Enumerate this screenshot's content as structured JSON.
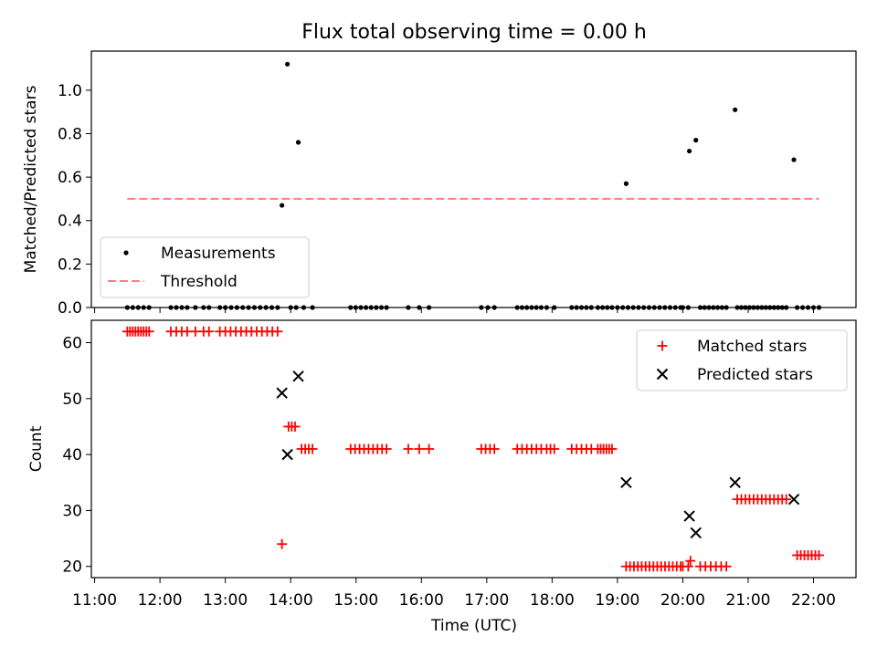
{
  "chart_data": {
    "title": "Flux total observing time = 0.00 h",
    "xlabel": "Time (UTC)",
    "x_tick_labels": [
      "11:00",
      "12:00",
      "13:00",
      "14:00",
      "15:00",
      "16:00",
      "17:00",
      "18:00",
      "19:00",
      "20:00",
      "21:00",
      "22:00"
    ],
    "x_range_hours": [
      10.95,
      22.65
    ],
    "panels": [
      {
        "type": "scatter",
        "ylabel": "Matched/Predicted stars",
        "ylim": [
          0,
          1.18
        ],
        "yticks": [
          0.0,
          0.2,
          0.4,
          0.6,
          0.8,
          1.0
        ],
        "ytick_labels": [
          "0.0",
          "0.2",
          "0.4",
          "0.6",
          "0.8",
          "1.0"
        ],
        "legend_position": "lower-left",
        "series": [
          {
            "name": "Measurements",
            "marker": "dot",
            "color": "#000000",
            "points": [
              [
                "13:52",
                0.47
              ],
              [
                "13:57",
                1.12
              ],
              [
                "14:07",
                0.76
              ],
              [
                "19:08",
                0.57
              ],
              [
                "20:06",
                0.72
              ],
              [
                "20:12",
                0.77
              ],
              [
                "20:48",
                0.91
              ],
              [
                "21:42",
                0.68
              ]
            ],
            "zero_runs": [
              [
                "11:30",
                "11:50",
                5
              ],
              [
                "12:10",
                "12:20",
                3
              ],
              [
                "12:25",
                "12:40",
                3
              ],
              [
                "12:45",
                "12:55",
                2
              ],
              [
                "13:00",
                "13:48",
                10
              ],
              [
                "14:00",
                "14:05",
                2
              ],
              [
                "14:12",
                "14:20",
                2
              ],
              [
                "14:55",
                "15:28",
                8
              ],
              [
                "15:48",
                "15:58",
                2
              ],
              [
                "16:07",
                "16:07",
                1
              ],
              [
                "16:55",
                "17:07",
                3
              ],
              [
                "17:28",
                "17:50",
                6
              ],
              [
                "17:55",
                "18:02",
                2
              ],
              [
                "18:18",
                "18:36",
                5
              ],
              [
                "18:42",
                "18:55",
                4
              ],
              [
                "19:00",
                "19:58",
                13
              ],
              [
                "20:00",
                "20:05",
                2
              ],
              [
                "20:16",
                "20:40",
                7
              ],
              [
                "20:50",
                "21:35",
                13
              ],
              [
                "21:45",
                "22:05",
                5
              ]
            ]
          },
          {
            "name": "Threshold",
            "type": "line",
            "style": "dashed",
            "color": "#ff7f7f",
            "y": 0.5,
            "x": [
              "11:30",
              "22:05"
            ]
          }
        ]
      },
      {
        "type": "scatter",
        "ylabel": "Count",
        "ylim": [
          18,
          64
        ],
        "yticks": [
          20,
          30,
          40,
          50,
          60
        ],
        "ytick_labels": [
          "20",
          "30",
          "40",
          "50",
          "60"
        ],
        "legend_position": "upper-right",
        "series": [
          {
            "name": "Matched stars",
            "marker": "plus",
            "color": "#ff0000",
            "runs": [
              [
                "11:30",
                "11:50",
                62,
                9
              ],
              [
                "12:10",
                "12:20",
                62,
                3
              ],
              [
                "12:25",
                "12:40",
                62,
                3
              ],
              [
                "12:45",
                "12:55",
                62,
                2
              ],
              [
                "13:00",
                "13:48",
                62,
                11
              ],
              [
                "13:58",
                "14:04",
                45,
                3
              ],
              [
                "14:10",
                "14:20",
                41,
                4
              ],
              [
                "14:55",
                "15:28",
                41,
                9
              ],
              [
                "15:48",
                "15:58",
                41,
                2
              ],
              [
                "16:07",
                "16:07",
                41,
                1
              ],
              [
                "16:55",
                "17:07",
                41,
                4
              ],
              [
                "17:28",
                "17:50",
                41,
                6
              ],
              [
                "17:55",
                "18:02",
                41,
                3
              ],
              [
                "18:18",
                "18:36",
                41,
                5
              ],
              [
                "18:42",
                "18:55",
                41,
                6
              ],
              [
                "19:08",
                "19:58",
                20,
                15
              ],
              [
                "20:00",
                "20:05",
                20,
                2
              ],
              [
                "20:16",
                "20:40",
                20,
                6
              ],
              [
                "20:50",
                "21:35",
                32,
                13
              ],
              [
                "21:45",
                "22:05",
                22,
                7
              ]
            ],
            "points": [
              [
                "13:52",
                24
              ],
              [
                "20:07",
                21
              ]
            ]
          },
          {
            "name": "Predicted stars",
            "marker": "x",
            "color": "#000000",
            "points": [
              [
                "13:52",
                51
              ],
              [
                "13:57",
                40
              ],
              [
                "14:07",
                54
              ],
              [
                "19:08",
                35
              ],
              [
                "20:06",
                29
              ],
              [
                "20:12",
                26
              ],
              [
                "20:48",
                35
              ],
              [
                "21:42",
                32
              ]
            ]
          }
        ]
      }
    ]
  }
}
